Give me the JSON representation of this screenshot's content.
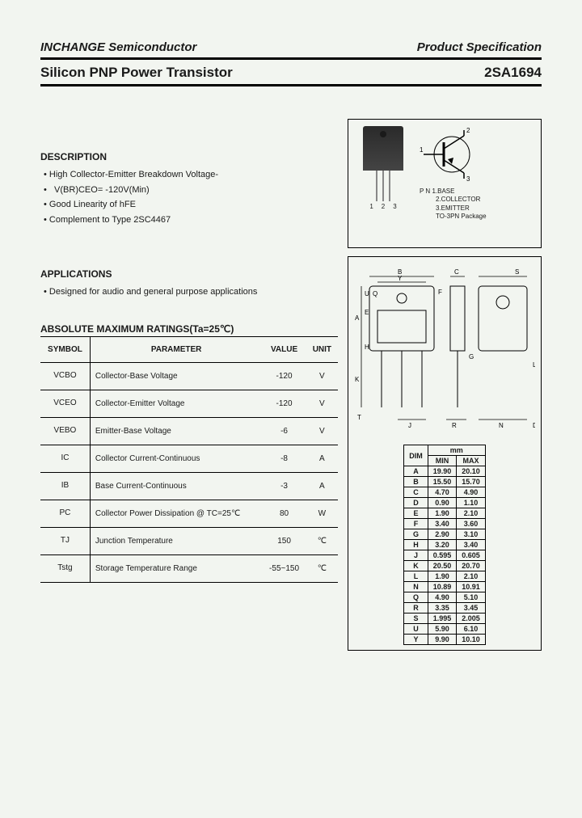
{
  "header": {
    "company": "INCHANGE Semiconductor",
    "spec": "Product Specification",
    "title": "Silicon PNP Power Transistor",
    "part": "2SA1694"
  },
  "description": {
    "heading": "DESCRIPTION",
    "items": [
      "High Collector-Emitter Breakdown Voltage-",
      "V(BR)CEO= -120V(Min)",
      "Good Linearity of hFE",
      "Complement to Type 2SC4467"
    ]
  },
  "applications": {
    "heading": "APPLICATIONS",
    "items": [
      "Designed for audio and general purpose applications"
    ]
  },
  "ratings": {
    "heading": "ABSOLUTE MAXIMUM RATINGS(Ta=25℃)",
    "columns": [
      "SYMBOL",
      "PARAMETER",
      "VALUE",
      "UNIT"
    ],
    "rows": [
      [
        "VCBO",
        "Collector-Base Voltage",
        "-120",
        "V"
      ],
      [
        "VCEO",
        "Collector-Emitter Voltage",
        "-120",
        "V"
      ],
      [
        "VEBO",
        "Emitter-Base Voltage",
        "-6",
        "V"
      ],
      [
        "IC",
        "Collector Current-Continuous",
        "-8",
        "A"
      ],
      [
        "IB",
        "Base Current-Continuous",
        "-3",
        "A"
      ],
      [
        "PC",
        "Collector Power Dissipation @ TC=25℃",
        "80",
        "W"
      ],
      [
        "TJ",
        "Junction Temperature",
        "150",
        "℃"
      ],
      [
        "Tstg",
        "Storage Temperature Range",
        "-55~150",
        "℃"
      ]
    ]
  },
  "pinout": {
    "title": "P N",
    "pins": [
      "1.BASE",
      "2.COLLECTOR",
      "3.EMITTER"
    ],
    "package": "TO-3PN Package",
    "nums": [
      "1",
      "2",
      "3"
    ]
  },
  "dimensions": {
    "unit": "mm",
    "columns": [
      "DIM",
      "MIN",
      "MAX"
    ],
    "rows": [
      [
        "A",
        "19.90",
        "20.10"
      ],
      [
        "B",
        "15.50",
        "15.70"
      ],
      [
        "C",
        "4.70",
        "4.90"
      ],
      [
        "D",
        "0.90",
        "1.10"
      ],
      [
        "E",
        "1.90",
        "2.10"
      ],
      [
        "F",
        "3.40",
        "3.60"
      ],
      [
        "G",
        "2.90",
        "3.10"
      ],
      [
        "H",
        "3.20",
        "3.40"
      ],
      [
        "J",
        "0.595",
        "0.605"
      ],
      [
        "K",
        "20.50",
        "20.70"
      ],
      [
        "L",
        "1.90",
        "2.10"
      ],
      [
        "N",
        "10.89",
        "10.91"
      ],
      [
        "Q",
        "4.90",
        "5.10"
      ],
      [
        "R",
        "3.35",
        "3.45"
      ],
      [
        "S",
        "1.995",
        "2.005"
      ],
      [
        "U",
        "5.90",
        "6.10"
      ],
      [
        "Y",
        "9.90",
        "10.10"
      ]
    ]
  }
}
